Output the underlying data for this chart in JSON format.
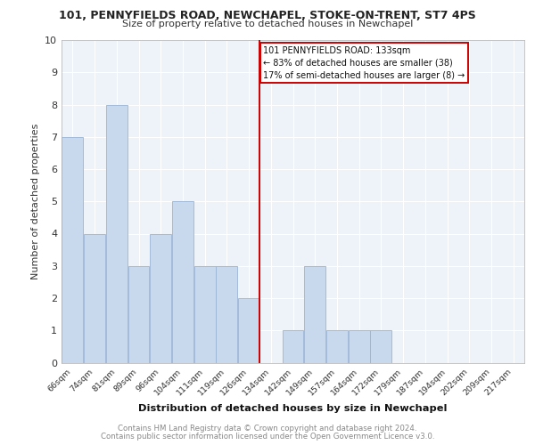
{
  "title1": "101, PENNYFIELDS ROAD, NEWCHAPEL, STOKE-ON-TRENT, ST7 4PS",
  "title2": "Size of property relative to detached houses in Newchapel",
  "xlabel": "Distribution of detached houses by size in Newchapel",
  "ylabel": "Number of detached properties",
  "categories": [
    "66sqm",
    "74sqm",
    "81sqm",
    "89sqm",
    "96sqm",
    "104sqm",
    "111sqm",
    "119sqm",
    "126sqm",
    "134sqm",
    "142sqm",
    "149sqm",
    "157sqm",
    "164sqm",
    "172sqm",
    "179sqm",
    "187sqm",
    "194sqm",
    "202sqm",
    "209sqm",
    "217sqm"
  ],
  "values": [
    7,
    4,
    8,
    3,
    4,
    5,
    3,
    3,
    2,
    0,
    1,
    3,
    1,
    1,
    1,
    0,
    0,
    0,
    0,
    0,
    0
  ],
  "bar_color": "#c8d9ee",
  "bar_edge_color": "#9ab4d4",
  "vline_index": 9,
  "vline_color": "#cc0000",
  "annotation_text": "101 PENNYFIELDS ROAD: 133sqm\n← 83% of detached houses are smaller (38)\n17% of semi-detached houses are larger (8) →",
  "annotation_box_color": "#cc0000",
  "ylim": [
    0,
    10
  ],
  "yticks": [
    0,
    1,
    2,
    3,
    4,
    5,
    6,
    7,
    8,
    9,
    10
  ],
  "footer_line1": "Contains HM Land Registry data © Crown copyright and database right 2024.",
  "footer_line2": "Contains public sector information licensed under the Open Government Licence v3.0.",
  "bg_color": "#eef2f9",
  "grid_color": "#ffffff"
}
